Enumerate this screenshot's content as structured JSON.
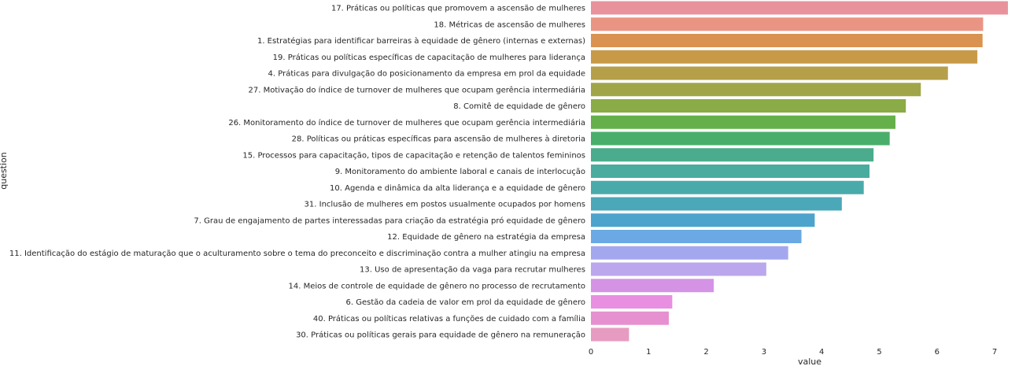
{
  "chart_data": {
    "type": "bar",
    "orientation": "horizontal",
    "xlabel": "value",
    "ylabel": "question",
    "xlim": [
      0,
      7.3
    ],
    "xticks": [
      0,
      1,
      2,
      3,
      4,
      5,
      6,
      7
    ],
    "grid": false,
    "categories": [
      "17. Práticas ou políticas que promovem a ascensão de mulheres",
      "18. Métricas de ascensão de mulheres",
      "1. Estratégias para identificar barreiras à equidade de gênero (internas e externas)",
      "19. Práticas ou políticas específicas de capacitação de mulheres para liderança",
      "4. Práticas para divulgação do posicionamento da empresa em prol da equidade",
      "27. Motivação do índice de turnover de mulheres que ocupam gerência intermediária",
      "8. Comitê de equidade de gênero",
      "26. Monitoramento do índice de turnover de mulheres que ocupam gerência intermediária",
      "28. Políticas ou práticas específicas para ascensão de mulheres à diretoria",
      "15. Processos para capacitação, tipos de capacitação e retenção de talentos femininos",
      "9. Monitoramento do ambiente laboral e canais de interlocução",
      "10. Agenda e dinâmica da alta liderança e a equidade de gênero",
      "31. Inclusão de mulheres em postos usualmente ocupados por homens",
      "7. Grau de engajamento de partes interessadas para criação da estratégia pró equidade de gênero",
      "12. Equidade de gênero na estratégia da empresa",
      "11. Identificação do estágio de maturação que o aculturamento sobre o tema do preconceito e discriminação contra a mulher atingiu na empresa",
      "13. Uso de apresentação da vaga para recrutar mulheres",
      "14. Meios de controle de equidade de gênero no processo de recrutamento",
      "6. Gestão da cadeia de valor em prol da equidade de gênero",
      "40. Práticas ou políticas relativas a funções de cuidado com a família",
      "30. Práticas ou políticas gerais para equidade de gênero na remuneração"
    ],
    "values": [
      7.23,
      6.8,
      6.79,
      6.7,
      6.19,
      5.72,
      5.46,
      5.28,
      5.18,
      4.9,
      4.83,
      4.73,
      4.35,
      3.88,
      3.65,
      3.42,
      3.04,
      2.13,
      1.41,
      1.35,
      0.66
    ],
    "colors": [
      "#e8939c",
      "#ea9584",
      "#d9924f",
      "#c89a48",
      "#b5a049",
      "#a0a548",
      "#8aab46",
      "#65b04a",
      "#4aae6b",
      "#4aac8c",
      "#4aab9f",
      "#49aaaa",
      "#4aa8b9",
      "#4ca4cc",
      "#6aa9e3",
      "#a3a8ee",
      "#bba7ed",
      "#d593e6",
      "#e88fe2",
      "#e690d0",
      "#e79bc0"
    ]
  }
}
